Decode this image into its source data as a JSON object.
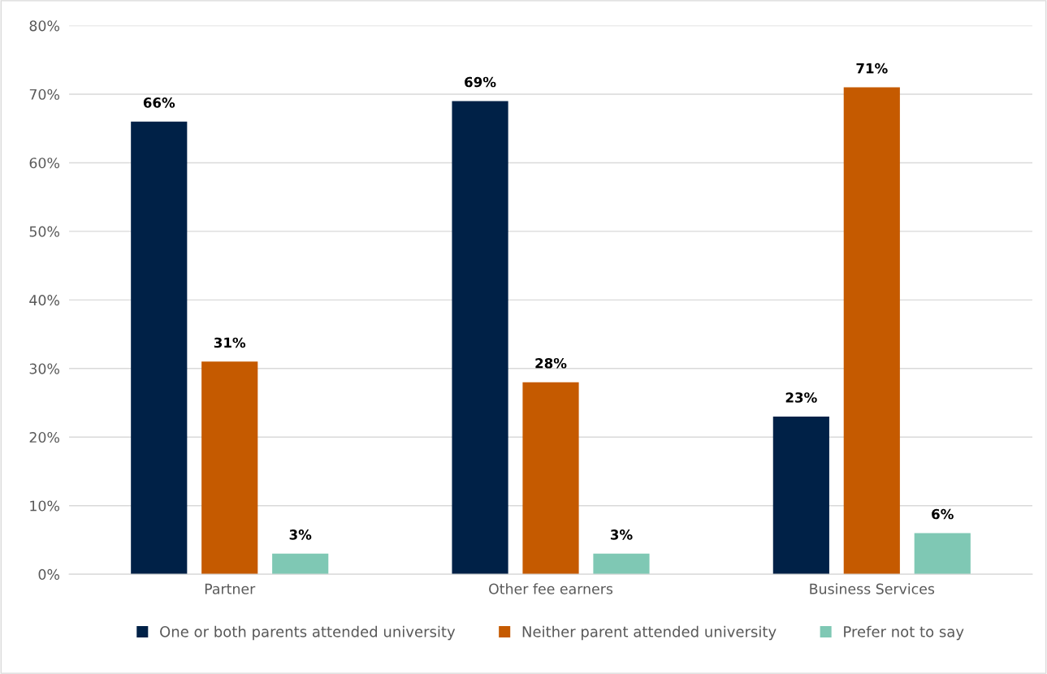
{
  "chart_data": {
    "type": "bar",
    "categories": [
      "Partner",
      "Other fee earners",
      "Business Services"
    ],
    "series": [
      {
        "name": "One or both parents attended university",
        "color": "#002147",
        "values": [
          66,
          69,
          23
        ],
        "value_labels": [
          "66%",
          "69%",
          "23%"
        ]
      },
      {
        "name": "Neither parent attended university",
        "color": "#c55a00",
        "values": [
          31,
          28,
          71
        ],
        "value_labels": [
          "31%",
          "28%",
          "71%"
        ]
      },
      {
        "name": "Prefer not to say",
        "color": "#7fc8b4",
        "values": [
          3,
          3,
          6
        ],
        "value_labels": [
          "3%",
          "3%",
          "6%"
        ]
      }
    ],
    "ylim": [
      0,
      80
    ],
    "yticks": [
      {
        "value": 0,
        "label": "0%"
      },
      {
        "value": 10,
        "label": "10%"
      },
      {
        "value": 20,
        "label": "20%"
      },
      {
        "value": 30,
        "label": "30%"
      },
      {
        "value": 40,
        "label": "40%"
      },
      {
        "value": 50,
        "label": "50%"
      },
      {
        "value": 60,
        "label": "60%"
      },
      {
        "value": 70,
        "label": "70%"
      },
      {
        "value": 80,
        "label": "80%"
      }
    ],
    "grid": "y",
    "legend": "bottom"
  }
}
